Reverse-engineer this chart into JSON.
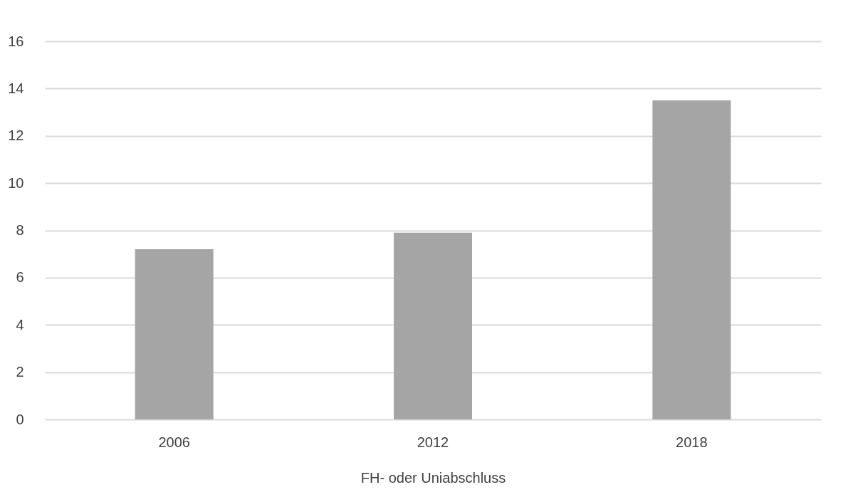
{
  "chart_data": {
    "type": "bar",
    "categories": [
      "2006",
      "2012",
      "2018"
    ],
    "values": [
      7.2,
      7.9,
      13.5
    ],
    "color": "#a5a5a5",
    "xlabel": "FH- oder Uniabschluss",
    "ylim": [
      0,
      16
    ],
    "yticks": [
      0,
      2,
      4,
      6,
      8,
      10,
      12,
      14,
      16
    ],
    "grid": "y"
  }
}
